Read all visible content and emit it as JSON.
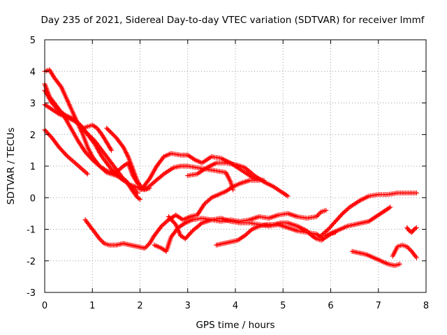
{
  "chart_data": {
    "type": "scatter",
    "title": "Day 235 of 2021, Sidereal Day-to-day VTEC variation (SDTVAR) for receiver lmmf",
    "xlabel": "GPS time / hours",
    "ylabel": "SDTVAR / TECUs",
    "xlim": [
      0,
      8
    ],
    "ylim": [
      -3,
      5
    ],
    "xticks": [
      "0",
      "1",
      "2",
      "3",
      "4",
      "5",
      "6",
      "7",
      "8"
    ],
    "yticks": [
      "-3",
      "-2",
      "-1",
      "0",
      "1",
      "2",
      "3",
      "4",
      "5"
    ],
    "grid": true,
    "marker": "plus",
    "color": "#ff0000",
    "series": [
      {
        "x": [
          0.0,
          0.1,
          0.2,
          0.35,
          0.5,
          0.65,
          0.8,
          0.9,
          1.0,
          1.15,
          1.3,
          1.5,
          1.7,
          1.85,
          1.95,
          2.0
        ],
        "y": [
          4.0,
          4.05,
          3.8,
          3.5,
          3.0,
          2.5,
          2.0,
          1.6,
          1.3,
          1.0,
          0.8,
          0.7,
          0.55,
          0.2,
          0.0,
          -0.05
        ]
      },
      {
        "x": [
          0.0,
          0.1,
          0.25,
          0.4,
          0.55,
          0.7,
          0.85,
          1.0,
          1.15,
          1.3,
          1.5,
          1.65,
          1.75,
          1.85,
          1.95
        ],
        "y": [
          3.6,
          3.2,
          2.9,
          2.6,
          2.2,
          1.8,
          1.45,
          1.2,
          1.0,
          0.85,
          0.8,
          1.0,
          1.1,
          0.7,
          0.45
        ]
      },
      {
        "x": [
          0.0,
          0.15,
          0.3,
          0.45,
          0.6,
          0.75,
          0.9,
          1.05,
          1.2,
          1.4,
          1.6,
          1.8,
          2.0,
          2.1,
          2.2
        ],
        "y": [
          3.4,
          3.0,
          2.75,
          2.6,
          2.5,
          2.3,
          2.0,
          1.7,
          1.3,
          0.9,
          0.6,
          0.4,
          0.3,
          0.25,
          0.3
        ]
      },
      {
        "x": [
          0.0,
          0.15,
          0.3,
          0.45,
          0.6,
          0.75,
          0.85,
          0.95,
          1.05,
          1.15,
          1.25,
          1.35,
          1.45,
          1.55,
          1.65,
          1.75,
          1.85,
          1.95
        ],
        "y": [
          2.95,
          2.8,
          2.65,
          2.55,
          2.45,
          2.3,
          2.1,
          1.95,
          1.8,
          1.6,
          1.4,
          1.2,
          1.0,
          0.8,
          0.6,
          0.45,
          0.3,
          0.15
        ]
      },
      {
        "x": [
          0.0,
          0.15,
          0.3,
          0.45,
          0.6,
          0.75,
          0.9
        ],
        "y": [
          2.15,
          1.9,
          1.6,
          1.35,
          1.15,
          0.95,
          0.75
        ]
      },
      {
        "x": [
          0.8,
          0.9,
          1.0,
          1.1,
          1.2,
          1.3,
          1.4
        ],
        "y": [
          2.2,
          2.25,
          2.3,
          2.2,
          2.0,
          1.75,
          1.5
        ]
      },
      {
        "x": [
          1.3,
          1.5,
          1.65,
          1.75,
          1.85,
          1.95,
          2.05,
          2.2,
          2.35,
          2.5,
          2.65,
          2.85,
          3.0,
          3.15,
          3.3,
          3.5,
          3.7,
          3.9,
          4.0,
          4.2,
          4.4,
          4.6
        ],
        "y": [
          2.2,
          1.9,
          1.6,
          1.3,
          0.9,
          0.5,
          0.3,
          0.6,
          1.0,
          1.3,
          1.4,
          1.35,
          1.35,
          1.2,
          1.1,
          1.3,
          1.25,
          1.1,
          1.0,
          0.8,
          0.6,
          0.55
        ]
      },
      {
        "x": [
          2.0,
          2.15,
          2.3,
          2.5,
          2.7,
          2.85,
          3.0,
          3.2,
          3.4,
          3.6,
          3.8,
          3.9,
          3.95
        ],
        "y": [
          0.25,
          0.3,
          0.5,
          0.75,
          0.95,
          1.0,
          1.0,
          0.95,
          0.9,
          0.85,
          0.8,
          0.5,
          0.25
        ]
      },
      {
        "x": [
          3.0,
          3.2,
          3.4,
          3.6,
          3.8,
          4.0,
          4.2,
          4.4,
          4.6,
          4.8,
          5.0,
          5.1
        ],
        "y": [
          0.7,
          0.75,
          0.95,
          1.1,
          1.1,
          1.05,
          0.95,
          0.7,
          0.5,
          0.35,
          0.15,
          0.05
        ]
      },
      {
        "x": [
          0.85,
          0.95,
          1.05,
          1.15,
          1.25,
          1.35,
          1.5,
          1.65,
          1.8,
          1.95,
          2.1,
          2.2,
          2.3,
          2.45,
          2.6,
          2.75,
          2.9,
          3.05,
          3.2,
          3.35,
          3.5,
          3.65,
          3.8,
          3.95,
          4.1,
          4.3,
          4.5
        ],
        "y": [
          -0.7,
          -0.9,
          -1.1,
          -1.3,
          -1.45,
          -1.5,
          -1.5,
          -1.45,
          -1.5,
          -1.55,
          -1.6,
          -1.45,
          -1.2,
          -0.9,
          -0.7,
          -0.55,
          -0.7,
          -0.6,
          -0.55,
          -0.2,
          0.0,
          0.1,
          0.2,
          0.35,
          0.45,
          0.55,
          0.55
        ]
      },
      {
        "x": [
          2.3,
          2.45,
          2.55,
          2.65,
          2.8,
          2.95,
          3.1,
          3.3,
          3.5,
          3.7,
          3.9,
          4.1,
          4.3,
          4.5,
          4.7,
          4.9,
          5.1,
          5.3,
          5.5,
          5.7,
          5.8,
          5.9
        ],
        "y": [
          -1.5,
          -1.6,
          -1.7,
          -1.25,
          -0.95,
          -0.8,
          -0.7,
          -0.65,
          -0.7,
          -0.75,
          -0.7,
          -0.75,
          -0.7,
          -0.6,
          -0.65,
          -0.55,
          -0.5,
          -0.6,
          -0.65,
          -0.6,
          -0.45,
          -0.4
        ]
      },
      {
        "x": [
          2.6,
          2.75,
          2.85,
          2.95,
          3.1,
          3.3,
          3.5,
          3.7,
          3.9,
          4.1,
          4.3,
          4.5,
          4.7,
          4.9,
          5.1,
          5.3,
          5.5,
          5.7,
          5.85
        ],
        "y": [
          -0.6,
          -0.85,
          -1.2,
          -1.3,
          -1.05,
          -0.8,
          -0.7,
          -0.65,
          -0.75,
          -0.8,
          -0.8,
          -0.85,
          -0.9,
          -0.85,
          -0.95,
          -1.05,
          -1.1,
          -1.15,
          -1.3
        ]
      },
      {
        "x": [
          3.6,
          3.75,
          3.9,
          4.05,
          4.2,
          4.35,
          4.5,
          4.65,
          4.8,
          4.95,
          5.1,
          5.3,
          5.5,
          5.6,
          5.7,
          5.8,
          5.9,
          6.0,
          6.1
        ],
        "y": [
          -1.5,
          -1.45,
          -1.4,
          -1.35,
          -1.2,
          -1.0,
          -0.9,
          -0.85,
          -0.85,
          -0.8,
          -0.8,
          -0.9,
          -1.05,
          -1.2,
          -1.3,
          -1.35,
          -1.25,
          -1.15,
          -1.1
        ]
      },
      {
        "x": [
          5.8,
          5.95,
          6.1,
          6.25,
          6.4,
          6.6,
          6.8,
          7.0,
          7.2,
          7.4,
          7.6,
          7.8
        ],
        "y": [
          -1.2,
          -1.0,
          -0.75,
          -0.5,
          -0.3,
          -0.1,
          0.05,
          0.1,
          0.1,
          0.15,
          0.15,
          0.15
        ]
      },
      {
        "x": [
          5.9,
          6.05,
          6.2,
          6.35,
          6.5,
          6.65,
          6.8,
          6.95,
          7.05,
          7.15,
          7.25
        ],
        "y": [
          -1.2,
          -1.1,
          -1.0,
          -0.9,
          -0.85,
          -0.8,
          -0.75,
          -0.6,
          -0.5,
          -0.4,
          -0.3
        ]
      },
      {
        "x": [
          6.45,
          6.6,
          6.75,
          6.9,
          7.05,
          7.2,
          7.35,
          7.45
        ],
        "y": [
          -1.7,
          -1.75,
          -1.8,
          -1.9,
          -2.0,
          -2.1,
          -2.15,
          -2.1
        ]
      },
      {
        "x": [
          7.3,
          7.4,
          7.5,
          7.6,
          7.7,
          7.8
        ],
        "y": [
          -1.85,
          -1.55,
          -1.5,
          -1.55,
          -1.7,
          -1.9
        ]
      },
      {
        "x": [
          7.6,
          7.65,
          7.7,
          7.75,
          7.8
        ],
        "y": [
          -0.95,
          -1.05,
          -1.1,
          -1.0,
          -0.95
        ]
      }
    ]
  }
}
